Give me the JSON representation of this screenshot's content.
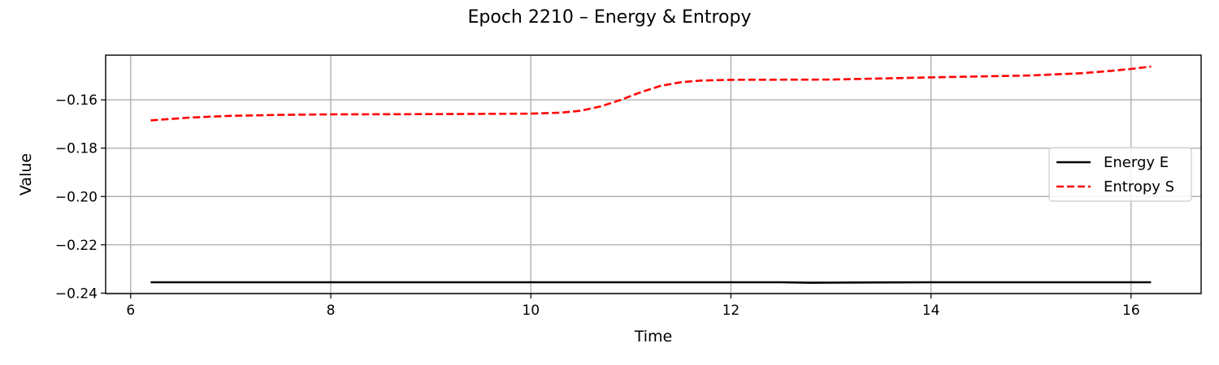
{
  "chart_data": {
    "type": "line",
    "title": "Epoch 2210 – Energy & Entropy",
    "xlabel": "Time",
    "ylabel": "Value",
    "xlim": [
      5.75,
      16.7
    ],
    "ylim": [
      -0.2402,
      -0.1415
    ],
    "x_ticks": [
      6,
      8,
      10,
      12,
      14,
      16
    ],
    "x_tick_labels": [
      "6",
      "8",
      "10",
      "12",
      "14",
      "16"
    ],
    "y_ticks": [
      -0.24,
      -0.22,
      -0.2,
      -0.18,
      -0.16
    ],
    "y_tick_labels": [
      "−0.24",
      "−0.22",
      "−0.20",
      "−0.18",
      "−0.16"
    ],
    "grid": true,
    "legend_position": "center-right",
    "series": [
      {
        "name": "Energy E",
        "color": "#000000",
        "style": "solid",
        "x": [
          6.2,
          7.0,
          8.0,
          9.0,
          10.0,
          11.0,
          12.0,
          12.5,
          12.8,
          13.2,
          14.0,
          15.0,
          16.0,
          16.2
        ],
        "y": [
          -0.2355,
          -0.2355,
          -0.2355,
          -0.2355,
          -0.2355,
          -0.2355,
          -0.2355,
          -0.2355,
          -0.2357,
          -0.2356,
          -0.2355,
          -0.2355,
          -0.2355,
          -0.2355
        ]
      },
      {
        "name": "Entropy S",
        "color": "#ff0000",
        "style": "dashed",
        "x": [
          6.2,
          6.6,
          7.0,
          7.5,
          8.0,
          9.0,
          10.0,
          10.3,
          10.5,
          10.7,
          10.9,
          11.1,
          11.3,
          11.5,
          11.7,
          12.0,
          13.0,
          14.0,
          14.5,
          15.0,
          15.5,
          15.8,
          16.0,
          16.2
        ],
        "y": [
          -0.1685,
          -0.1673,
          -0.1666,
          -0.1662,
          -0.166,
          -0.1659,
          -0.1657,
          -0.1653,
          -0.1645,
          -0.1627,
          -0.16,
          -0.1568,
          -0.1542,
          -0.1527,
          -0.152,
          -0.1517,
          -0.1516,
          -0.1507,
          -0.1503,
          -0.1499,
          -0.149,
          -0.148,
          -0.1472,
          -0.1462
        ]
      }
    ]
  }
}
